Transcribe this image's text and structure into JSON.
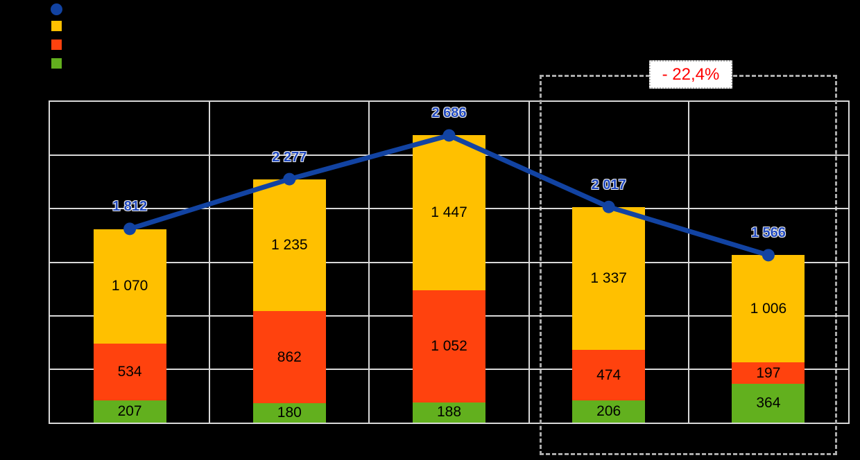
{
  "chart_data": {
    "type": "bar",
    "variant": "stacked-column-with-line-overlay",
    "n_categories": 5,
    "category_labels_visible": false,
    "y_axis_labels_visible": false,
    "ylim": [
      0,
      3000
    ],
    "gridline_step": 500,
    "grid": true,
    "series": [
      {
        "id": "yellow",
        "stack_position": "top",
        "color": "#FFC000",
        "values": [
          1070,
          1235,
          1447,
          1337,
          1006
        ]
      },
      {
        "id": "red",
        "stack_position": "middle",
        "color": "#FF420E",
        "values": [
          534,
          862,
          1052,
          474,
          197
        ]
      },
      {
        "id": "green",
        "stack_position": "bottom",
        "color": "#62B01E",
        "values": [
          207,
          180,
          188,
          206,
          364
        ]
      }
    ],
    "line_series": {
      "id": "total",
      "color": "#1243A2",
      "label_color": "#2149BE",
      "values": [
        1812,
        2277,
        2686,
        2017,
        1566
      ]
    },
    "legend": {
      "position": "top-left",
      "labels_visible": false,
      "markers": [
        {
          "shape": "circle",
          "series": "total",
          "color": "#1243A2"
        },
        {
          "shape": "square",
          "series": "yellow",
          "color": "#FFC000"
        },
        {
          "shape": "square",
          "series": "red",
          "color": "#FF420E"
        },
        {
          "shape": "square",
          "series": "green",
          "color": "#62B01E"
        }
      ]
    },
    "annotation": {
      "text": "- 22,4%",
      "text_color": "#FF0000",
      "box_background": "#FFFFFF",
      "highlights_last_n_categories": 2
    },
    "number_format": "space-thousand-separator"
  },
  "colors": {
    "background": "#000000",
    "plot_border": "#D9D9D9",
    "gridline": "#D9D9D9",
    "highlight_dash": "#ABABAB",
    "segment_label": "#000000"
  }
}
